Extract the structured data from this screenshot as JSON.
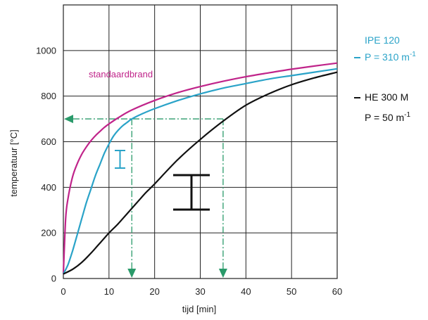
{
  "chart_data": {
    "type": "line",
    "xlabel": "tijd [min]",
    "ylabel": "temperatuur [°C]",
    "xlim": [
      0,
      60
    ],
    "ylim": [
      0,
      1200
    ],
    "xticks": [
      0,
      10,
      20,
      30,
      40,
      50,
      60
    ],
    "yticks": [
      0,
      200,
      400,
      600,
      800,
      1000
    ],
    "grid": true,
    "series": [
      {
        "name": "standaardbrand",
        "color": "#c0248a",
        "x": [
          0,
          0.5,
          1,
          2,
          3,
          4,
          5,
          6,
          7,
          8,
          9,
          10,
          12,
          15,
          20,
          25,
          30,
          35,
          40,
          45,
          50,
          55,
          60
        ],
        "y": [
          20,
          260,
          349,
          445,
          502,
          544,
          576,
          603,
          626,
          645,
          663,
          678,
          705,
          739,
          781,
          815,
          842,
          865,
          885,
          902,
          918,
          932,
          945
        ]
      },
      {
        "name": "IPE 120",
        "sublabel": "P = 310 m",
        "sublabel_sup": "-1",
        "color": "#2aa3c8",
        "x": [
          0,
          1,
          2,
          3,
          4,
          5,
          6,
          7,
          8,
          9,
          10,
          11,
          12,
          13,
          14,
          15,
          17,
          20,
          25,
          30,
          35,
          40,
          45,
          50,
          55,
          60
        ],
        "y": [
          20,
          60,
          120,
          190,
          260,
          330,
          390,
          450,
          500,
          550,
          590,
          625,
          650,
          670,
          685,
          700,
          720,
          745,
          780,
          810,
          835,
          855,
          875,
          890,
          905,
          920
        ]
      },
      {
        "name": "HE 300 M",
        "sublabel": "P = 50 m",
        "sublabel_sup": "-1",
        "color": "#111111",
        "x": [
          0,
          2,
          4,
          6,
          8,
          10,
          12,
          14,
          16,
          18,
          20,
          25,
          30,
          35,
          40,
          45,
          50,
          55,
          60
        ],
        "y": [
          20,
          40,
          70,
          110,
          155,
          200,
          240,
          285,
          330,
          375,
          415,
          520,
          610,
          690,
          760,
          810,
          850,
          880,
          905
        ]
      }
    ],
    "annotations": {
      "curve_label": "standaardbrand",
      "reference_temperature": 700,
      "drop_lines_x": [
        15,
        35
      ]
    },
    "colors": {
      "guide": "#2a9a6a"
    }
  }
}
